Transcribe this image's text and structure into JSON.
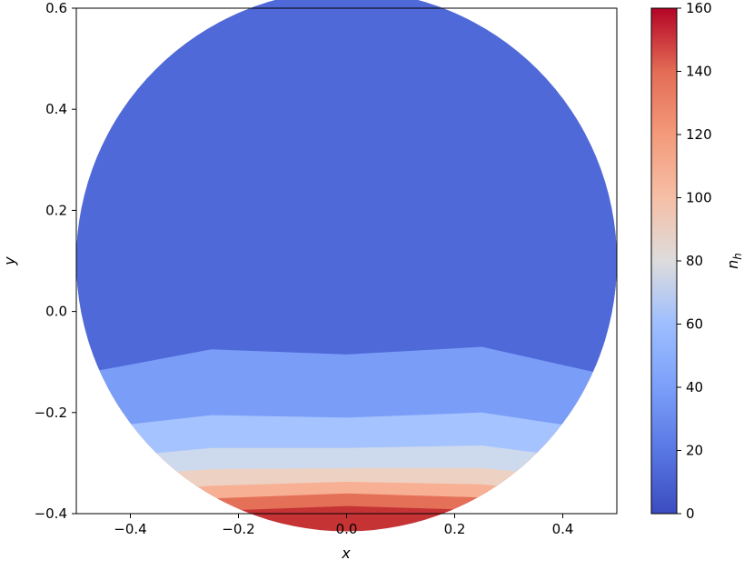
{
  "chart_data": {
    "type": "filled-contour",
    "xlabel": "x",
    "ylabel": "y",
    "xlim": [
      -0.5,
      0.5
    ],
    "ylim": [
      -0.4,
      0.6
    ],
    "xticks": [
      -0.4,
      -0.2,
      0.0,
      0.2,
      0.4
    ],
    "xtick_labels": [
      "−0.4",
      "−0.2",
      "0.0",
      "0.2",
      "0.4"
    ],
    "yticks": [
      -0.4,
      -0.2,
      0.0,
      0.2,
      0.4,
      0.6
    ],
    "ytick_labels": [
      "−0.4",
      "−0.2",
      "0.0",
      "0.2",
      "0.4",
      "0.6"
    ],
    "domain": {
      "shape": "circle",
      "center": [
        0.0,
        0.1
      ],
      "radius": 0.5
    },
    "colorbar": {
      "label": "n_h",
      "label_main": "n",
      "label_sub": "h",
      "colormap": "coolwarm",
      "range": [
        0,
        160
      ],
      "ticks": [
        0,
        20,
        40,
        60,
        80,
        100,
        120,
        140,
        160
      ],
      "tick_labels": [
        "0",
        "20",
        "40",
        "60",
        "80",
        "100",
        "120",
        "140",
        "160"
      ]
    },
    "levels": [
      {
        "range": [
          0,
          20
        ],
        "color": "#4f69d9",
        "boundary": [
          [
            -0.5,
            -0.125
          ],
          [
            -0.25,
            -0.075
          ],
          [
            0.0,
            -0.085
          ],
          [
            0.25,
            -0.07
          ],
          [
            0.5,
            -0.13
          ]
        ]
      },
      {
        "range": [
          20,
          40
        ],
        "color": "#7a9df8",
        "boundary": [
          [
            -0.5,
            -0.235
          ],
          [
            -0.25,
            -0.205
          ],
          [
            0.0,
            -0.21
          ],
          [
            0.25,
            -0.2
          ],
          [
            0.5,
            -0.24
          ]
        ]
      },
      {
        "range": [
          40,
          60
        ],
        "color": "#a5c3fe",
        "boundary": [
          [
            -0.5,
            -0.295
          ],
          [
            -0.25,
            -0.27
          ],
          [
            0.0,
            -0.27
          ],
          [
            0.25,
            -0.265
          ],
          [
            0.5,
            -0.3
          ]
        ]
      },
      {
        "range": [
          60,
          80
        ],
        "color": "#cdd9ec",
        "boundary": [
          [
            -0.5,
            -0.33
          ],
          [
            -0.25,
            -0.312
          ],
          [
            0.0,
            -0.31
          ],
          [
            0.25,
            -0.31
          ],
          [
            0.5,
            -0.335
          ]
        ]
      },
      {
        "range": [
          80,
          100
        ],
        "color": "#edd1c2",
        "boundary": [
          [
            -0.5,
            -0.365
          ],
          [
            -0.25,
            -0.345
          ],
          [
            0.0,
            -0.337
          ],
          [
            0.25,
            -0.342
          ],
          [
            0.5,
            -0.37
          ]
        ]
      },
      {
        "range": [
          100,
          120
        ],
        "color": "#f7b093",
        "boundary": [
          [
            -0.5,
            -0.4
          ],
          [
            -0.25,
            -0.37
          ],
          [
            0.0,
            -0.36
          ],
          [
            0.25,
            -0.368
          ],
          [
            0.5,
            -0.405
          ]
        ]
      },
      {
        "range": [
          120,
          140
        ],
        "color": "#e57058",
        "boundary": [
          [
            -0.5,
            -0.43
          ],
          [
            -0.25,
            -0.395
          ],
          [
            0.0,
            -0.385
          ],
          [
            0.25,
            -0.393
          ],
          [
            0.5,
            -0.43
          ]
        ]
      },
      {
        "range": [
          140,
          160
        ],
        "color": "#c53334",
        "boundary": null
      }
    ]
  }
}
